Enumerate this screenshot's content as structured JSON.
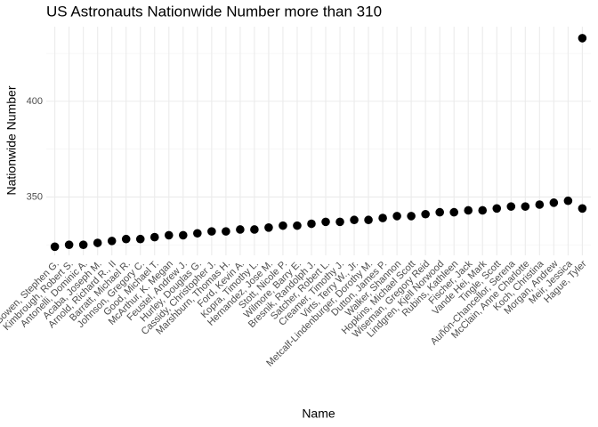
{
  "chart_data": {
    "type": "scatter",
    "title": "US Astronauts Nationwide Number more than 310",
    "x_label": "Name",
    "y_label": "Nationwide Number",
    "categories": [
      "Bowen, Stephen G.",
      "Kimbrough, Robert S.",
      "Antonelli, Dominic A.",
      "Acaba, Joseph M.",
      "Arnold, Richard R., II",
      "Barratt, Michael R.",
      "Johnson, Gregory C.",
      "Good, Michael T.",
      "McArthur, K. Megan",
      "Feustel, Andrew J.",
      "Hurley, Douglas G.",
      "Cassidy, Christopher J.",
      "Marshburn, Thomas H.",
      "Ford, Kevin A.",
      "Kopra, Timothy L.",
      "Hernandez, Jose M.",
      "Stott, Nicole P.",
      "Wilmore, Barry E.",
      "Bresnik, Randolph J.",
      "Satcher, Robert L.",
      "Creamer, Timothy J.",
      "Virts, Terry W., Jr.",
      "Metcalf-Lindenburger, Dorothy M.",
      "Dutton, James P.",
      "Walker, Shannon",
      "Hopkins, Michael Scott",
      "Wiseman, Gregory Reid",
      "Lindgren, Kjell Norwood",
      "Rubins, Kathleen",
      "Fischer, Jack",
      "Vande Hei, Mark",
      "Tingle, Scott",
      "Auñón-Chancellor, Serena",
      "McClain, Anne Charlotte",
      "Koch, Christina",
      "Morgan, Andrew",
      "Meir, Jessica",
      "Hague, Tyler"
    ],
    "series": [
      {
        "color": "#000000",
        "values": [
          324,
          325,
          325,
          326,
          327,
          328,
          328,
          329,
          330,
          330,
          331,
          332,
          332,
          333,
          333,
          334,
          335,
          335,
          336,
          337,
          337,
          338,
          338,
          339,
          340,
          340,
          341,
          342,
          342,
          343,
          343,
          344,
          345,
          345,
          346,
          347,
          348,
          344
        ]
      },
      {
        "color": "#000000",
        "values": [
          null,
          null,
          null,
          null,
          null,
          null,
          null,
          null,
          null,
          null,
          null,
          null,
          null,
          null,
          null,
          null,
          null,
          null,
          null,
          null,
          null,
          null,
          null,
          null,
          null,
          null,
          null,
          null,
          null,
          null,
          null,
          null,
          null,
          null,
          null,
          null,
          null,
          433
        ]
      }
    ],
    "ylim": [
      319.5,
      439
    ],
    "yticks": [
      350,
      400
    ],
    "minor_yticks": [
      325,
      375,
      425
    ],
    "grid": true
  }
}
